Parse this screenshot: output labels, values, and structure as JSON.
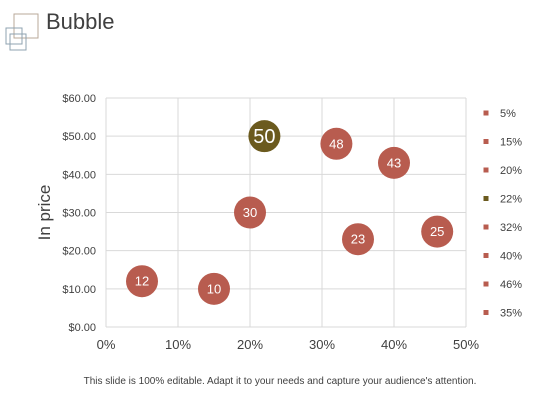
{
  "slide": {
    "title": "Bubble",
    "footer": "This slide is 100% editable. Adapt it to your needs and capture your audience's attention."
  },
  "colors": {
    "primary_bubble": "#b85c4f",
    "highlight_bubble": "#6b5a1e",
    "grid": "#d9d9d9",
    "text": "#404040",
    "logo_stroke_1": "#b8a89a",
    "logo_stroke_2": "#8fa3b0"
  },
  "chart_data": {
    "type": "bubble",
    "title": "",
    "xlabel": "",
    "ylabel": "In price",
    "xlim": [
      0,
      0.5
    ],
    "ylim": [
      0,
      60
    ],
    "x_ticks": [
      "0%",
      "10%",
      "20%",
      "30%",
      "40%",
      "50%"
    ],
    "y_ticks": [
      "$0.00",
      "$10.00",
      "$20.00",
      "$30.00",
      "$40.00",
      "$50.00",
      "$60.00"
    ],
    "grid": true,
    "legend_position": "right",
    "points": [
      {
        "x": 0.05,
        "y": 12,
        "label": "12",
        "legend": "5%",
        "highlight": false
      },
      {
        "x": 0.15,
        "y": 10,
        "label": "10",
        "legend": "15%",
        "highlight": false
      },
      {
        "x": 0.2,
        "y": 30,
        "label": "30",
        "legend": "20%",
        "highlight": false
      },
      {
        "x": 0.22,
        "y": 50,
        "label": "50",
        "legend": "22%",
        "highlight": true
      },
      {
        "x": 0.32,
        "y": 48,
        "label": "48",
        "legend": "32%",
        "highlight": false
      },
      {
        "x": 0.4,
        "y": 43,
        "label": "43",
        "legend": "40%",
        "highlight": false
      },
      {
        "x": 0.46,
        "y": 25,
        "label": "25",
        "legend": "46%",
        "highlight": false
      },
      {
        "x": 0.35,
        "y": 23,
        "label": "23",
        "legend": "35%",
        "highlight": false
      }
    ]
  }
}
